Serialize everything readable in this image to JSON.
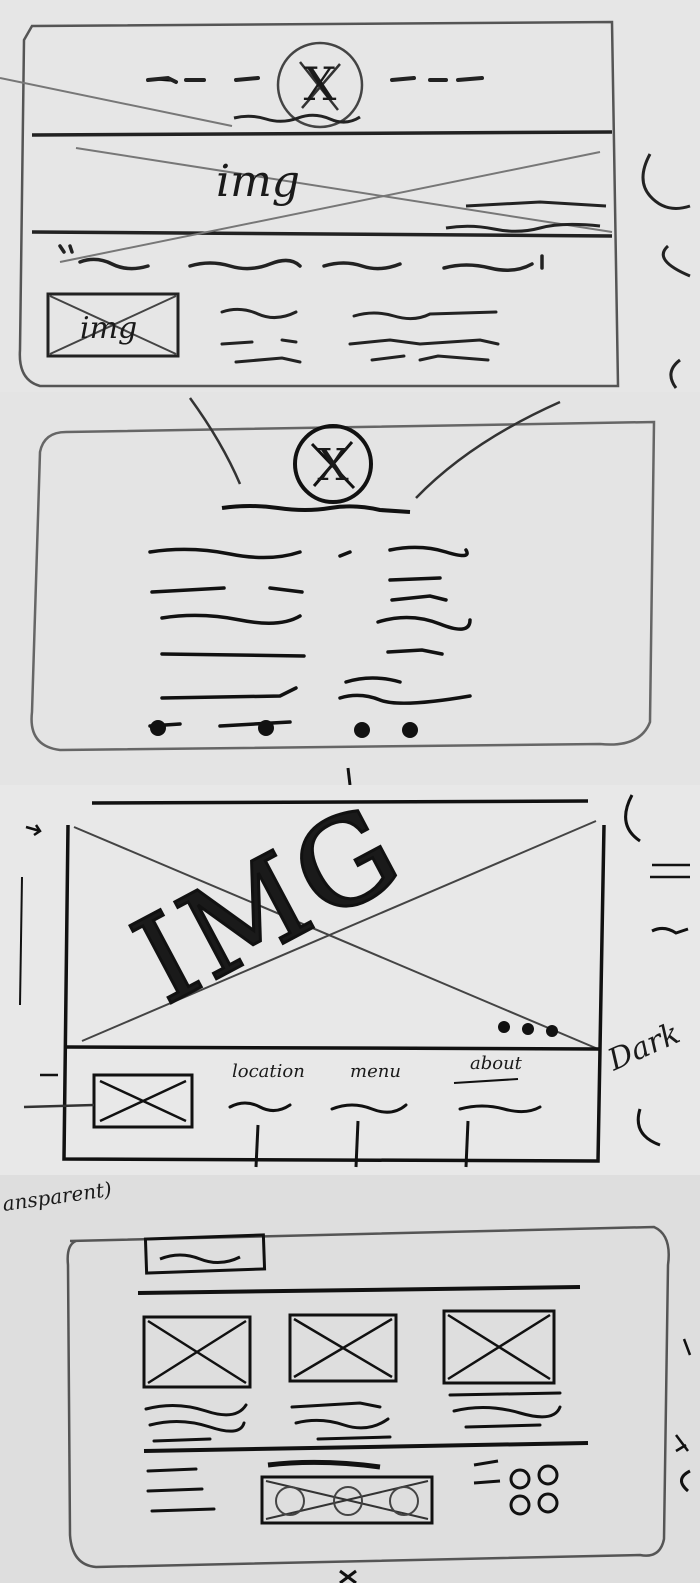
{
  "sketch_1": {
    "logo_mark": "X",
    "hero_label": "img",
    "thumb_label": "img"
  },
  "sketch_2": {
    "logo_mark": "X"
  },
  "sketch_3": {
    "hero_label": "IMG",
    "nav_items": [
      "location",
      "menu",
      "about"
    ],
    "margin_note": "Dark"
  },
  "sketch_4": {
    "margin_note": "ansparent)"
  },
  "colors": {
    "paper": "#e7e7e7",
    "paper_shade": "#dadada",
    "ink": "#1a1a1a",
    "pencil": "#6b6b6b"
  }
}
